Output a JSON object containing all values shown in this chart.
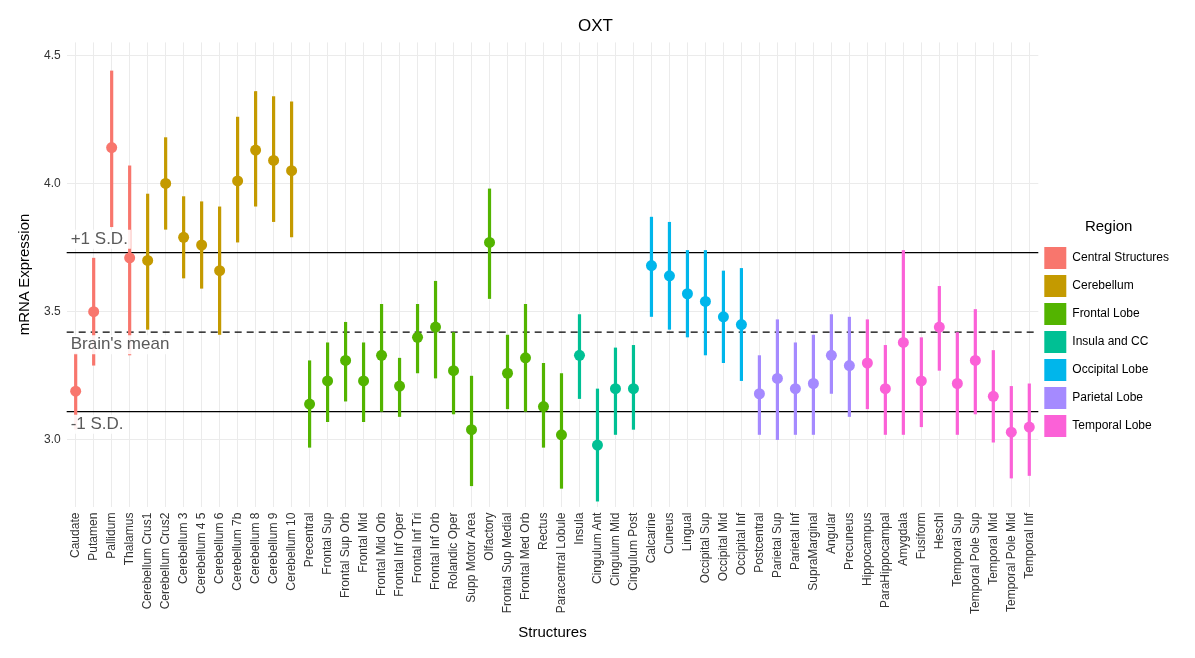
{
  "chart_data": {
    "type": "scatter",
    "title": "OXT",
    "xlabel": "Structures",
    "ylabel": "mRNA Expression",
    "legend_title": "Region",
    "legend": "right",
    "grid": true,
    "marker": "circle",
    "categories": [
      "Caudate",
      "Putamen",
      "Pallidum",
      "Thalamus",
      "Cerebellum Crus1",
      "Cerebellum Crus2",
      "Cerebellum 3",
      "Cerebellum 4 5",
      "Cerebellum 6",
      "Cerebellum 7b",
      "Cerebellum 8",
      "Cerebellum 9",
      "Cerebellum 10",
      "Precentral",
      "Frontal Sup",
      "Frontal Sup Orb",
      "Frontal Mid",
      "Frontal Mid Orb",
      "Frontal Inf Oper",
      "Frontal Inf Tri",
      "Frontal Inf Orb",
      "Rolandic Oper",
      "Supp Motor Area",
      "Olfactory",
      "Frontal Sup Medial",
      "Frontal Med Orb",
      "Rectus",
      "Paracentral Lobule",
      "Insula",
      "Cingulum Ant",
      "Cingulum Mid",
      "Cingulum Post",
      "Calcarine",
      "Cuneus",
      "Lingual",
      "Occipital Sup",
      "Occipital Mid",
      "Occipital Inf",
      "Postcentral",
      "Parietal Sup",
      "Parietal Inf",
      "SupraMarginal",
      "Angular",
      "Precuneus",
      "Hippocampus",
      "ParaHippocampal",
      "Amygdala",
      "Fusiform",
      "Heschl",
      "Temporal Sup",
      "Temporal Pole Sup",
      "Temporal Mid",
      "Temporal Pole Mid",
      "Temporal Inf"
    ],
    "ylim": [
      2.74,
      4.55
    ],
    "yticks": [
      {
        "value": 3,
        "label": "3.0"
      },
      {
        "value": 3.5,
        "label": "3.5"
      },
      {
        "value": 4,
        "label": "4.0"
      },
      {
        "value": 4.5,
        "label": "4.5"
      }
    ],
    "ref_lines": [
      {
        "axis": "y",
        "value": 3.73,
        "label": "+1 S.D.",
        "color": "#000000",
        "line_style": "solid"
      },
      {
        "axis": "y",
        "value": 3.42,
        "label": "Brain's mean",
        "color": "#000000",
        "line_style": "dashed"
      },
      {
        "axis": "y",
        "value": 3.11,
        "label": "-1 S.D.",
        "color": "#000000",
        "line_style": "solid"
      }
    ],
    "series": [
      {
        "name": "Central Structures",
        "color": "#f8766d",
        "values": [
          3.19,
          3.5,
          4.14,
          3.71,
          null,
          null,
          null,
          null,
          null,
          null,
          null,
          null,
          null,
          null,
          null,
          null,
          null,
          null,
          null,
          null,
          null,
          null,
          null,
          null,
          null,
          null,
          null,
          null,
          null,
          null,
          null,
          null,
          null,
          null,
          null,
          null,
          null,
          null,
          null,
          null,
          null,
          null,
          null,
          null,
          null,
          null,
          null,
          null,
          null,
          null,
          null,
          null,
          null,
          null
        ],
        "errors": [
          [
            3.04,
            3.34
          ],
          [
            3.29,
            3.71
          ],
          [
            3.83,
            4.44
          ],
          [
            3.33,
            4.07
          ],
          null,
          null,
          null,
          null,
          null,
          null,
          null,
          null,
          null,
          null,
          null,
          null,
          null,
          null,
          null,
          null,
          null,
          null,
          null,
          null,
          null,
          null,
          null,
          null,
          null,
          null,
          null,
          null,
          null,
          null,
          null,
          null,
          null,
          null,
          null,
          null,
          null,
          null,
          null,
          null,
          null,
          null,
          null,
          null,
          null,
          null,
          null,
          null,
          null,
          null
        ]
      },
      {
        "name": "Cerebellum",
        "color": "#c49a00",
        "values": [
          null,
          null,
          null,
          null,
          3.7,
          4.0,
          3.79,
          3.76,
          3.66,
          4.01,
          4.13,
          4.09,
          4.05,
          null,
          null,
          null,
          null,
          null,
          null,
          null,
          null,
          null,
          null,
          null,
          null,
          null,
          null,
          null,
          null,
          null,
          null,
          null,
          null,
          null,
          null,
          null,
          null,
          null,
          null,
          null,
          null,
          null,
          null,
          null,
          null,
          null,
          null,
          null,
          null,
          null,
          null,
          null,
          null,
          null
        ],
        "errors": [
          null,
          null,
          null,
          null,
          [
            3.43,
            3.96
          ],
          [
            3.82,
            4.18
          ],
          [
            3.63,
            3.95
          ],
          [
            3.59,
            3.93
          ],
          [
            3.41,
            3.91
          ],
          [
            3.77,
            4.26
          ],
          [
            3.91,
            4.36
          ],
          [
            3.85,
            4.34
          ],
          [
            3.79,
            4.32
          ],
          null,
          null,
          null,
          null,
          null,
          null,
          null,
          null,
          null,
          null,
          null,
          null,
          null,
          null,
          null,
          null,
          null,
          null,
          null,
          null,
          null,
          null,
          null,
          null,
          null,
          null,
          null,
          null,
          null,
          null,
          null,
          null,
          null,
          null,
          null,
          null,
          null,
          null,
          null,
          null,
          null
        ]
      },
      {
        "name": "Frontal Lobe",
        "color": "#53b400",
        "values": [
          null,
          null,
          null,
          null,
          null,
          null,
          null,
          null,
          null,
          null,
          null,
          null,
          null,
          3.14,
          3.23,
          3.31,
          3.23,
          3.33,
          3.21,
          3.4,
          3.44,
          3.27,
          3.04,
          3.77,
          3.26,
          3.32,
          3.13,
          3.02,
          null,
          null,
          null,
          null,
          null,
          null,
          null,
          null,
          null,
          null,
          null,
          null,
          null,
          null,
          null,
          null,
          null,
          null,
          null,
          null,
          null,
          null,
          null,
          null,
          null,
          null
        ],
        "errors": [
          null,
          null,
          null,
          null,
          null,
          null,
          null,
          null,
          null,
          null,
          null,
          null,
          null,
          [
            2.97,
            3.31
          ],
          [
            3.07,
            3.38
          ],
          [
            3.15,
            3.46
          ],
          [
            3.07,
            3.38
          ],
          [
            3.11,
            3.53
          ],
          [
            3.09,
            3.32
          ],
          [
            3.26,
            3.53
          ],
          [
            3.24,
            3.62
          ],
          [
            3.1,
            3.42
          ],
          [
            2.82,
            3.25
          ],
          [
            3.55,
            3.98
          ],
          [
            3.12,
            3.41
          ],
          [
            3.11,
            3.53
          ],
          [
            2.97,
            3.3
          ],
          [
            2.81,
            3.26
          ],
          null,
          null,
          null,
          null,
          null,
          null,
          null,
          null,
          null,
          null,
          null,
          null,
          null,
          null,
          null,
          null,
          null,
          null,
          null,
          null,
          null,
          null,
          null,
          null,
          null,
          null
        ]
      },
      {
        "name": "Insula and CC",
        "color": "#00c094",
        "values": [
          null,
          null,
          null,
          null,
          null,
          null,
          null,
          null,
          null,
          null,
          null,
          null,
          null,
          null,
          null,
          null,
          null,
          null,
          null,
          null,
          null,
          null,
          null,
          null,
          null,
          null,
          null,
          null,
          3.33,
          2.98,
          3.2,
          3.2,
          null,
          null,
          null,
          null,
          null,
          null,
          null,
          null,
          null,
          null,
          null,
          null,
          null,
          null,
          null,
          null,
          null,
          null,
          null,
          null,
          null,
          null
        ],
        "errors": [
          null,
          null,
          null,
          null,
          null,
          null,
          null,
          null,
          null,
          null,
          null,
          null,
          null,
          null,
          null,
          null,
          null,
          null,
          null,
          null,
          null,
          null,
          null,
          null,
          null,
          null,
          null,
          null,
          [
            3.16,
            3.49
          ],
          [
            2.76,
            3.2
          ],
          [
            3.02,
            3.36
          ],
          [
            3.04,
            3.37
          ],
          null,
          null,
          null,
          null,
          null,
          null,
          null,
          null,
          null,
          null,
          null,
          null,
          null,
          null,
          null,
          null,
          null,
          null,
          null,
          null,
          null,
          null
        ]
      },
      {
        "name": "Occipital Lobe",
        "color": "#00b6eb",
        "values": [
          null,
          null,
          null,
          null,
          null,
          null,
          null,
          null,
          null,
          null,
          null,
          null,
          null,
          null,
          null,
          null,
          null,
          null,
          null,
          null,
          null,
          null,
          null,
          null,
          null,
          null,
          null,
          null,
          null,
          null,
          null,
          null,
          3.68,
          3.64,
          3.57,
          3.54,
          3.48,
          3.45,
          null,
          null,
          null,
          null,
          null,
          null,
          null,
          null,
          null,
          null,
          null,
          null,
          null,
          null,
          null,
          null
        ],
        "errors": [
          null,
          null,
          null,
          null,
          null,
          null,
          null,
          null,
          null,
          null,
          null,
          null,
          null,
          null,
          null,
          null,
          null,
          null,
          null,
          null,
          null,
          null,
          null,
          null,
          null,
          null,
          null,
          null,
          null,
          null,
          null,
          null,
          [
            3.48,
            3.87
          ],
          [
            3.43,
            3.85
          ],
          [
            3.4,
            3.74
          ],
          [
            3.33,
            3.74
          ],
          [
            3.3,
            3.66
          ],
          [
            3.23,
            3.67
          ],
          null,
          null,
          null,
          null,
          null,
          null,
          null,
          null,
          null,
          null,
          null,
          null,
          null,
          null,
          null,
          null
        ]
      },
      {
        "name": "Parietal Lobe",
        "color": "#a58aff",
        "values": [
          null,
          null,
          null,
          null,
          null,
          null,
          null,
          null,
          null,
          null,
          null,
          null,
          null,
          null,
          null,
          null,
          null,
          null,
          null,
          null,
          null,
          null,
          null,
          null,
          null,
          null,
          null,
          null,
          null,
          null,
          null,
          null,
          null,
          null,
          null,
          null,
          null,
          null,
          3.18,
          3.24,
          3.2,
          3.22,
          3.33,
          3.29,
          null,
          null,
          null,
          null,
          null,
          null,
          null,
          null,
          null,
          null
        ],
        "errors": [
          null,
          null,
          null,
          null,
          null,
          null,
          null,
          null,
          null,
          null,
          null,
          null,
          null,
          null,
          null,
          null,
          null,
          null,
          null,
          null,
          null,
          null,
          null,
          null,
          null,
          null,
          null,
          null,
          null,
          null,
          null,
          null,
          null,
          null,
          null,
          null,
          null,
          null,
          [
            3.02,
            3.33
          ],
          [
            3.0,
            3.47
          ],
          [
            3.02,
            3.38
          ],
          [
            3.02,
            3.41
          ],
          [
            3.18,
            3.49
          ],
          [
            3.09,
            3.48
          ],
          null,
          null,
          null,
          null,
          null,
          null,
          null,
          null,
          null,
          null
        ]
      },
      {
        "name": "Temporal Lobe",
        "color": "#fb61d7",
        "values": [
          null,
          null,
          null,
          null,
          null,
          null,
          null,
          null,
          null,
          null,
          null,
          null,
          null,
          null,
          null,
          null,
          null,
          null,
          null,
          null,
          null,
          null,
          null,
          null,
          null,
          null,
          null,
          null,
          null,
          null,
          null,
          null,
          null,
          null,
          null,
          null,
          null,
          null,
          null,
          null,
          null,
          null,
          null,
          null,
          3.3,
          3.2,
          3.38,
          3.23,
          3.44,
          3.22,
          3.31,
          3.17,
          3.03,
          3.05
        ],
        "errors": [
          null,
          null,
          null,
          null,
          null,
          null,
          null,
          null,
          null,
          null,
          null,
          null,
          null,
          null,
          null,
          null,
          null,
          null,
          null,
          null,
          null,
          null,
          null,
          null,
          null,
          null,
          null,
          null,
          null,
          null,
          null,
          null,
          null,
          null,
          null,
          null,
          null,
          null,
          null,
          null,
          null,
          null,
          null,
          null,
          [
            3.12,
            3.47
          ],
          [
            3.02,
            3.37
          ],
          [
            3.02,
            3.74
          ],
          [
            3.05,
            3.4
          ],
          [
            3.27,
            3.6
          ],
          [
            3.02,
            3.42
          ],
          [
            3.1,
            3.51
          ],
          [
            2.99,
            3.35
          ],
          [
            2.85,
            3.21
          ],
          [
            2.86,
            3.22
          ]
        ]
      }
    ]
  }
}
